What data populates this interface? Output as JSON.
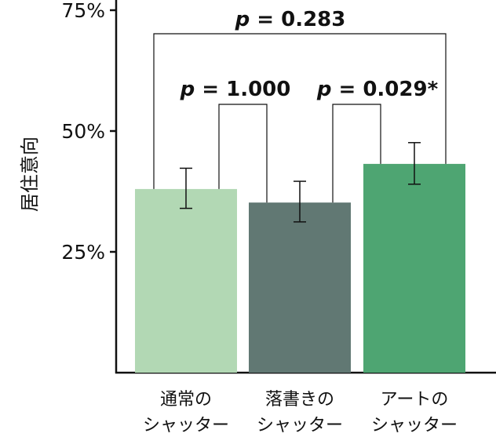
{
  "chart_data": {
    "type": "bar",
    "ylabel": "居住意向",
    "ylim": [
      0,
      75
    ],
    "yticks": [
      {
        "value": 25,
        "label": "25%"
      },
      {
        "value": 50,
        "label": "50%"
      },
      {
        "value": 75,
        "label": "75%"
      }
    ],
    "categories": [
      [
        "通常の",
        "シャッター"
      ],
      [
        "落書きの",
        "シャッター"
      ],
      [
        "アートの",
        "シャッター"
      ]
    ],
    "values": [
      38.0,
      35.2,
      43.2
    ],
    "error_low": [
      34.0,
      31.2,
      39.0
    ],
    "error_high": [
      42.3,
      39.6,
      47.6
    ],
    "colors": [
      "#b2d8b4",
      "#617873",
      "#4ea572"
    ],
    "comparisons": [
      {
        "pair": [
          0,
          1
        ],
        "label_parts": [
          "p",
          " = 1.000"
        ]
      },
      {
        "pair": [
          1,
          2
        ],
        "label_parts": [
          "p",
          " = 0.029*"
        ]
      },
      {
        "pair": [
          0,
          2
        ],
        "label_parts": [
          "p",
          " = 0.283"
        ]
      }
    ],
    "grid": false,
    "legend": "none"
  }
}
